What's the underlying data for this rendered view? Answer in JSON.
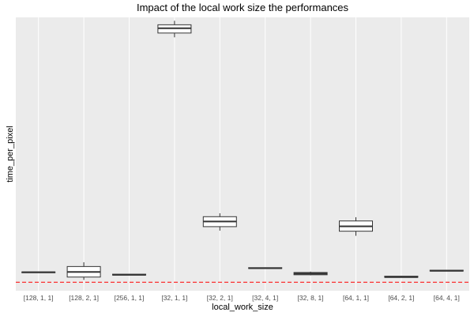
{
  "chart_data": {
    "type": "boxplot",
    "title": "Impact of the local work size the performances",
    "xlabel": "local_work_size",
    "ylabel": "time_per_pixel",
    "y_tick_labels_shown": false,
    "grid": true,
    "background": "#ebebeb",
    "reference_line": {
      "value": 0,
      "color": "#ff0000",
      "style": "dashed"
    },
    "ylim": [
      -0.3,
      9.3
    ],
    "categories": [
      "[128, 1, 1]",
      "[128, 2, 1]",
      "[256, 1, 1]",
      "[32, 1, 1]",
      "[32, 2, 1]",
      "[32, 4, 1]",
      "[32, 8, 1]",
      "[64, 1, 1]",
      "[64, 2, 1]",
      "[64, 4, 1]"
    ],
    "boxes": [
      {
        "min": 0.34,
        "q1": 0.34,
        "median": 0.35,
        "q3": 0.36,
        "max": 0.36
      },
      {
        "min": 0.08,
        "q1": 0.18,
        "median": 0.36,
        "q3": 0.55,
        "max": 0.7
      },
      {
        "min": 0.24,
        "q1": 0.25,
        "median": 0.26,
        "q3": 0.28,
        "max": 0.29
      },
      {
        "min": 8.6,
        "q1": 8.75,
        "median": 8.92,
        "q3": 9.04,
        "max": 9.18
      },
      {
        "min": 1.81,
        "q1": 1.95,
        "median": 2.13,
        "q3": 2.3,
        "max": 2.42
      },
      {
        "min": 0.47,
        "q1": 0.48,
        "median": 0.49,
        "q3": 0.51,
        "max": 0.52
      },
      {
        "min": 0.24,
        "q1": 0.26,
        "median": 0.3,
        "q3": 0.34,
        "max": 0.37
      },
      {
        "min": 1.63,
        "q1": 1.79,
        "median": 1.96,
        "q3": 2.15,
        "max": 2.28
      },
      {
        "min": 0.16,
        "q1": 0.17,
        "median": 0.18,
        "q3": 0.21,
        "max": 0.22
      },
      {
        "min": 0.38,
        "q1": 0.39,
        "median": 0.4,
        "q3": 0.42,
        "max": 0.43
      }
    ]
  }
}
